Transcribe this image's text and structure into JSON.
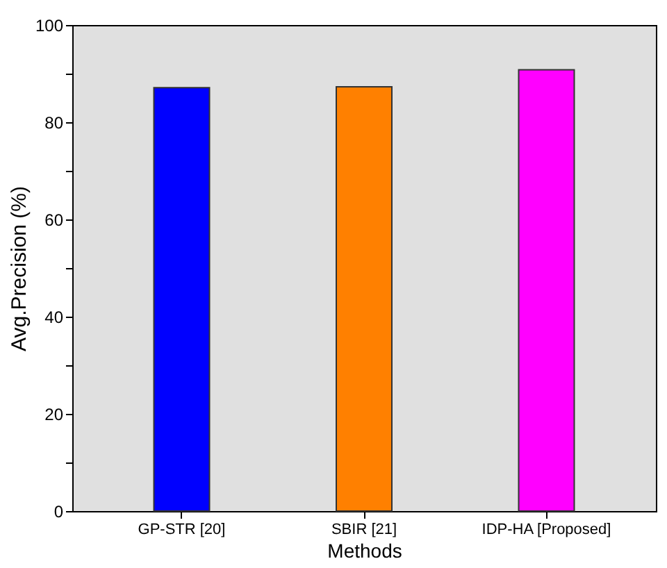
{
  "chart_data": {
    "type": "bar",
    "xlabel": "Methods",
    "ylabel": "Avg.Precision (%)",
    "categories": [
      "GP-STR [20]",
      "SBIR [21]",
      "IDP-HA [Proposed]"
    ],
    "values": [
      87.1,
      87.3,
      90.8
    ],
    "colors": [
      "#0000ff",
      "#ff8000",
      "#ff00ff"
    ],
    "ylim": [
      0,
      100
    ],
    "yticks": [
      0,
      {
        "value": 10,
        "label": null
      },
      20,
      {
        "value": 30,
        "label": null
      },
      40,
      {
        "value": 50,
        "label": null
      },
      60,
      {
        "value": 70,
        "label": null
      },
      80,
      {
        "value": 90,
        "label": null
      },
      100
    ],
    "grid": false
  }
}
